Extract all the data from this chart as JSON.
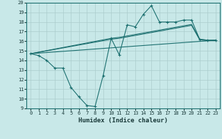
{
  "background_color": "#c8e8e8",
  "grid_color": "#aacccc",
  "line_color": "#1a6e6e",
  "xlabel": "Humidex (Indice chaleur)",
  "xlim": [
    -0.5,
    23.5
  ],
  "ylim": [
    9,
    20
  ],
  "yticks": [
    9,
    10,
    11,
    12,
    13,
    14,
    15,
    16,
    17,
    18,
    19,
    20
  ],
  "xticks": [
    0,
    1,
    2,
    3,
    4,
    5,
    6,
    7,
    8,
    9,
    10,
    11,
    12,
    13,
    14,
    15,
    16,
    17,
    18,
    19,
    20,
    21,
    22,
    23
  ],
  "series": [
    {
      "x": [
        0,
        1,
        2,
        3,
        4,
        5,
        6,
        7,
        8,
        9,
        10,
        11,
        12,
        13,
        14,
        15,
        16,
        17,
        18,
        19,
        20,
        21,
        22,
        23
      ],
      "y": [
        14.7,
        14.5,
        14.0,
        13.2,
        13.2,
        11.2,
        10.2,
        9.3,
        9.2,
        12.4,
        16.3,
        14.6,
        17.7,
        17.5,
        18.8,
        19.7,
        18.0,
        18.0,
        18.0,
        18.2,
        18.2,
        16.2,
        16.1,
        16.1
      ],
      "marker": true
    },
    {
      "x": [
        0,
        23
      ],
      "y": [
        14.7,
        16.1
      ],
      "marker": false
    },
    {
      "x": [
        0,
        10,
        11,
        12,
        13,
        14,
        15,
        16,
        17,
        18,
        19,
        20,
        21,
        22,
        23
      ],
      "y": [
        14.7,
        16.3,
        16.4,
        16.55,
        16.7,
        16.85,
        17.0,
        17.15,
        17.3,
        17.45,
        17.6,
        17.75,
        16.2,
        16.1,
        16.1
      ],
      "marker": false
    },
    {
      "x": [
        0,
        10,
        11,
        12,
        13,
        14,
        15,
        16,
        17,
        18,
        19,
        20,
        21,
        22,
        23
      ],
      "y": [
        14.7,
        16.2,
        16.3,
        16.45,
        16.6,
        16.75,
        16.9,
        17.05,
        17.2,
        17.35,
        17.5,
        17.65,
        16.15,
        16.05,
        16.05
      ],
      "marker": false
    }
  ]
}
